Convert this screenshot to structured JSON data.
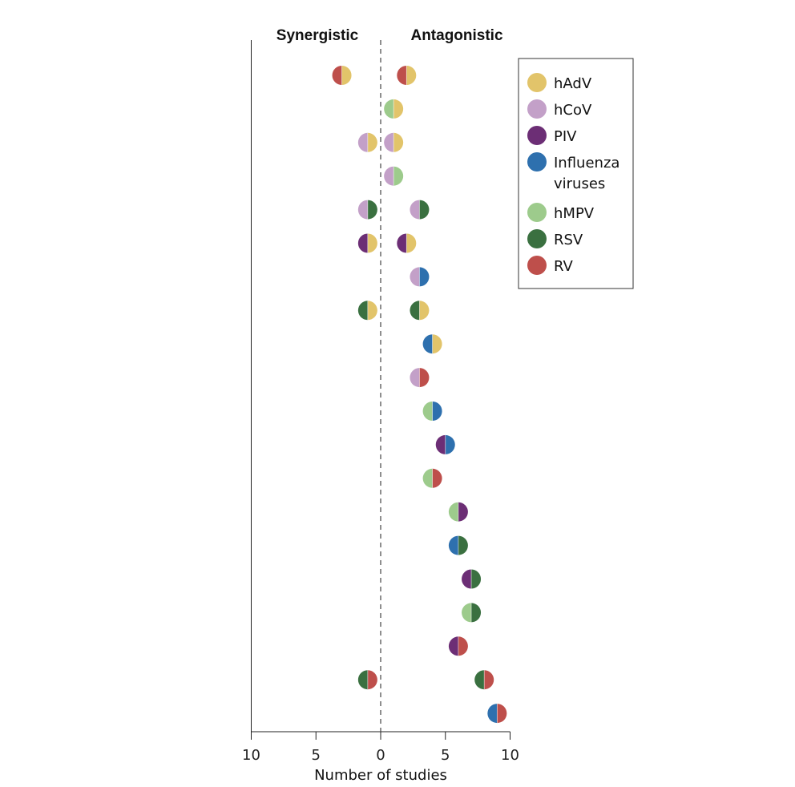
{
  "chart_data": {
    "type": "scatter",
    "title": "",
    "headers": {
      "left": "Synergistic",
      "right": "Antagonistic"
    },
    "xlabel": "Number of studies",
    "x_ticks": [
      "10",
      "5",
      "0",
      "5",
      "10"
    ],
    "x_tick_values": [
      -10,
      -5,
      0,
      5,
      10
    ],
    "xlim": [
      -10,
      10
    ],
    "grid": false,
    "legend_position": "top-right",
    "viruses": [
      {
        "name": "hAdV",
        "label": [
          "hAdV"
        ],
        "color": "#E2C46A"
      },
      {
        "name": "hCoV",
        "label": [
          "hCoV"
        ],
        "color": "#C3A0C8"
      },
      {
        "name": "PIV",
        "label": [
          "PIV"
        ],
        "color": "#6C2E75"
      },
      {
        "name": "Influenza viruses",
        "label": [
          "Influenza",
          "viruses"
        ],
        "color": "#2E70AE"
      },
      {
        "name": "hMPV",
        "label": [
          "hMPV"
        ],
        "color": "#9DCB8C"
      },
      {
        "name": "RSV",
        "label": [
          "RSV"
        ],
        "color": "#3A7040"
      },
      {
        "name": "RV",
        "label": [
          "RV"
        ],
        "color": "#BE4F4B"
      }
    ],
    "pairs": [
      {
        "left_virus": "RV",
        "right_virus": "hAdV",
        "synergistic": 3,
        "antagonistic": 2
      },
      {
        "left_virus": "hMPV",
        "right_virus": "hAdV",
        "synergistic": 0,
        "antagonistic": 1
      },
      {
        "left_virus": "hCoV",
        "right_virus": "hAdV",
        "synergistic": 1,
        "antagonistic": 1
      },
      {
        "left_virus": "hCoV",
        "right_virus": "hMPV",
        "synergistic": 0,
        "antagonistic": 1
      },
      {
        "left_virus": "hCoV",
        "right_virus": "RSV",
        "synergistic": 1,
        "antagonistic": 3
      },
      {
        "left_virus": "PIV",
        "right_virus": "hAdV",
        "synergistic": 1,
        "antagonistic": 2
      },
      {
        "left_virus": "hCoV",
        "right_virus": "Influenza viruses",
        "synergistic": 0,
        "antagonistic": 3
      },
      {
        "left_virus": "RSV",
        "right_virus": "hAdV",
        "synergistic": 1,
        "antagonistic": 3
      },
      {
        "left_virus": "Influenza viruses",
        "right_virus": "hAdV",
        "synergistic": 0,
        "antagonistic": 4
      },
      {
        "left_virus": "hCoV",
        "right_virus": "RV",
        "synergistic": 0,
        "antagonistic": 3
      },
      {
        "left_virus": "hMPV",
        "right_virus": "Influenza viruses",
        "synergistic": 0,
        "antagonistic": 4
      },
      {
        "left_virus": "PIV",
        "right_virus": "Influenza viruses",
        "synergistic": 0,
        "antagonistic": 5
      },
      {
        "left_virus": "hMPV",
        "right_virus": "RV",
        "synergistic": 0,
        "antagonistic": 4
      },
      {
        "left_virus": "hMPV",
        "right_virus": "PIV",
        "synergistic": 0,
        "antagonistic": 6
      },
      {
        "left_virus": "Influenza viruses",
        "right_virus": "RSV",
        "synergistic": 0,
        "antagonistic": 6
      },
      {
        "left_virus": "PIV",
        "right_virus": "RSV",
        "synergistic": 0,
        "antagonistic": 7
      },
      {
        "left_virus": "hMPV",
        "right_virus": "RSV",
        "synergistic": 0,
        "antagonistic": 7
      },
      {
        "left_virus": "PIV",
        "right_virus": "RV",
        "synergistic": 0,
        "antagonistic": 6
      },
      {
        "left_virus": "RSV",
        "right_virus": "RV",
        "synergistic": 1,
        "antagonistic": 8
      },
      {
        "left_virus": "Influenza viruses",
        "right_virus": "RV",
        "synergistic": 0,
        "antagonistic": 9
      }
    ]
  }
}
